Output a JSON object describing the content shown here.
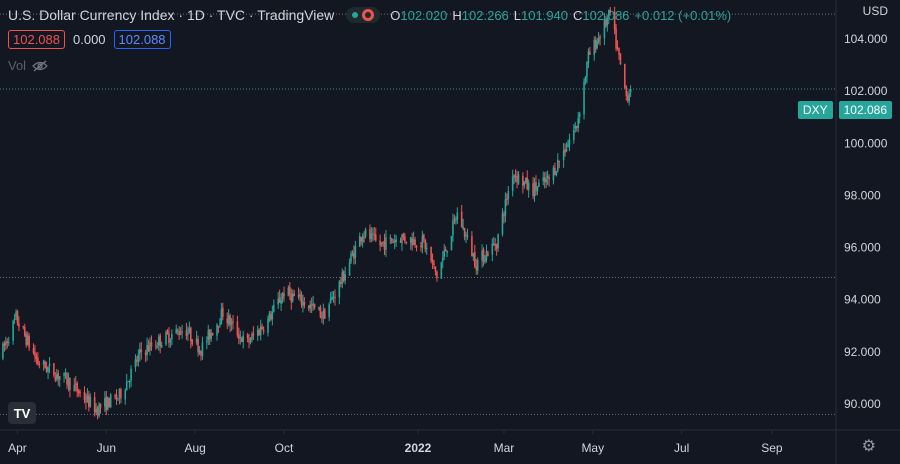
{
  "header": {
    "title": "U.S. Dollar Currency Index · 1D · TVC · TradingView",
    "ohlc": [
      {
        "k": "O",
        "v": "102.020"
      },
      {
        "k": "H",
        "v": "102.266"
      },
      {
        "k": "L",
        "v": "101.940"
      },
      {
        "k": "C",
        "v": "102.086"
      },
      {
        "k": "",
        "v": "+0.012 (+0.01%)"
      }
    ]
  },
  "row2": {
    "bid": "102.088",
    "spread": "0.000",
    "ask": "102.088"
  },
  "vol_label": "Vol",
  "currency": "USD",
  "price_tag": {
    "symbol": "DXY",
    "price": "102.086"
  },
  "colors": {
    "bg": "#131722",
    "up": "#26a69a",
    "down": "#ef5350",
    "grid": "#2a2e39",
    "axis_text": "#d1d4dc"
  },
  "chart_data": {
    "type": "candlestick",
    "title": "U.S. Dollar Currency Index",
    "ylim": [
      89.0,
      105.5
    ],
    "yticks": [
      "90.000",
      "92.000",
      "94.000",
      "96.000",
      "98.000",
      "100.000",
      "102.000",
      "104.000"
    ],
    "xticks": [
      {
        "label": "Apr",
        "x": "2021-04-01",
        "bold": false
      },
      {
        "label": "Jun",
        "x": "2021-06-01",
        "bold": false
      },
      {
        "label": "Aug",
        "x": "2021-08-01",
        "bold": false
      },
      {
        "label": "Oct",
        "x": "2021-10-01",
        "bold": false
      },
      {
        "label": "2022",
        "x": "2022-01-01",
        "bold": true
      },
      {
        "label": "Mar",
        "x": "2022-03-01",
        "bold": false
      },
      {
        "label": "May",
        "x": "2022-05-01",
        "bold": false
      },
      {
        "label": "Jul",
        "x": "2022-07-01",
        "bold": false
      },
      {
        "label": "Sep",
        "x": "2022-09-01",
        "bold": false
      }
    ],
    "xlim": [
      "2021-03-20",
      "2022-10-15"
    ],
    "hlines": [
      104.96,
      102.086,
      94.85,
      89.6
    ],
    "last_price": 102.086,
    "waypoints": [
      [
        "2021-03-20",
        91.8
      ],
      [
        "2021-03-31",
        93.3
      ],
      [
        "2021-04-15",
        91.6
      ],
      [
        "2021-05-05",
        90.9
      ],
      [
        "2021-05-25",
        89.8
      ],
      [
        "2021-06-10",
        90.3
      ],
      [
        "2021-06-25",
        92.0
      ],
      [
        "2021-07-10",
        92.5
      ],
      [
        "2021-07-25",
        92.9
      ],
      [
        "2021-08-05",
        92.1
      ],
      [
        "2021-08-20",
        93.5
      ],
      [
        "2021-09-05",
        92.3
      ],
      [
        "2021-09-20",
        93.2
      ],
      [
        "2021-10-01",
        94.3
      ],
      [
        "2021-10-15",
        93.9
      ],
      [
        "2021-10-28",
        93.4
      ],
      [
        "2021-11-10",
        94.8
      ],
      [
        "2021-11-24",
        96.6
      ],
      [
        "2021-12-05",
        96.1
      ],
      [
        "2021-12-20",
        96.4
      ],
      [
        "2022-01-05",
        96.2
      ],
      [
        "2022-01-14",
        94.9
      ],
      [
        "2022-01-28",
        97.3
      ],
      [
        "2022-02-10",
        95.4
      ],
      [
        "2022-02-24",
        96.2
      ],
      [
        "2022-03-07",
        98.9
      ],
      [
        "2022-03-20",
        98.2
      ],
      [
        "2022-04-01",
        98.6
      ],
      [
        "2022-04-20",
        100.7
      ],
      [
        "2022-04-28",
        103.3
      ],
      [
        "2022-05-13",
        104.96
      ],
      [
        "2022-05-24",
        101.8
      ],
      [
        "2022-05-27",
        102.086
      ]
    ]
  }
}
